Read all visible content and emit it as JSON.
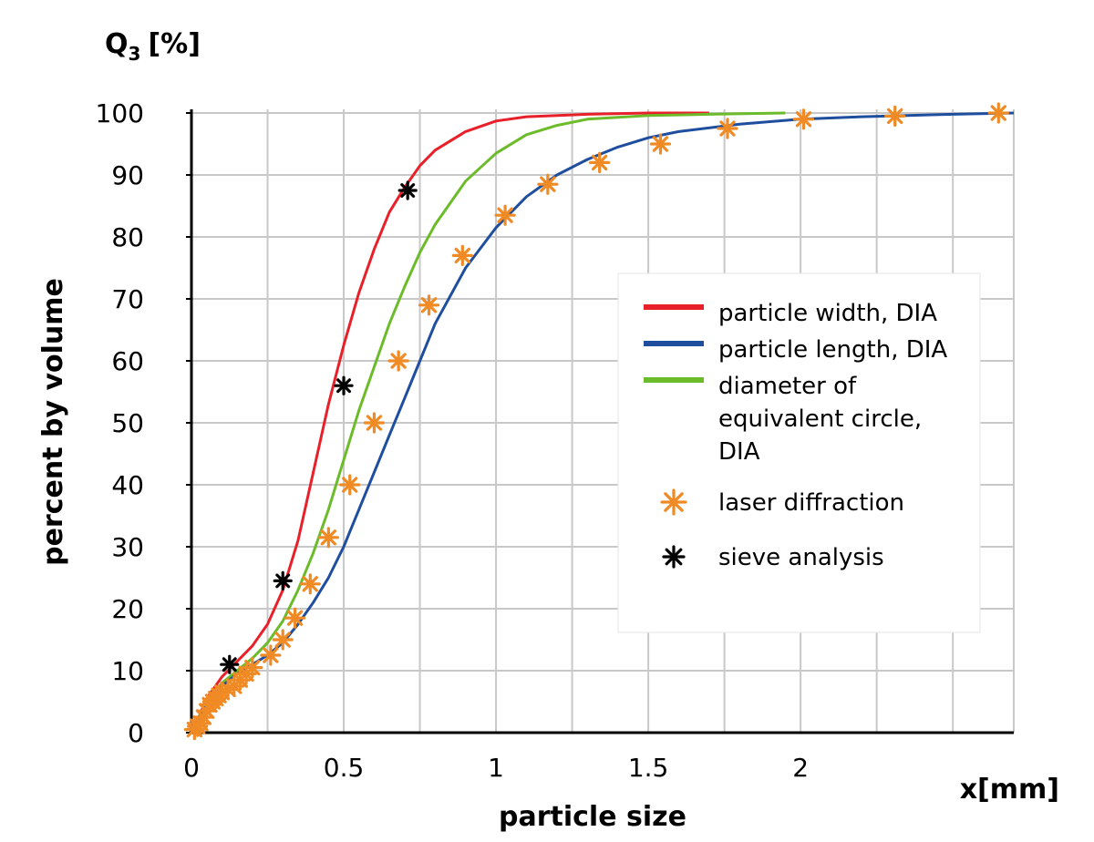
{
  "chart_data": {
    "type": "line",
    "title": "",
    "ylabel_top": "Q",
    "ylabel_top_sub": "3",
    "ylabel_top_unit": "[%]",
    "ylabel": "percent by volume",
    "xlabel": "particle size",
    "xunit_label": "x[mm]",
    "xlim": [
      0,
      2.7
    ],
    "ylim": [
      0,
      100
    ],
    "x_ticks": [
      0,
      0.5,
      1,
      1.5,
      2
    ],
    "x_tick_labels": [
      "0",
      "0.5",
      "1",
      "1.5",
      "2"
    ],
    "x_grid_step": 0.25,
    "y_ticks": [
      0,
      10,
      20,
      30,
      40,
      50,
      60,
      70,
      80,
      90,
      100
    ],
    "y_tick_labels": [
      "0",
      "10",
      "20",
      "30",
      "40",
      "50",
      "60",
      "70",
      "80",
      "90",
      "100"
    ],
    "grid": true,
    "legend_position": "right",
    "legend": [
      {
        "label_lines": [
          "particle width, DIA"
        ],
        "kind": "line",
        "color": "#e8202a"
      },
      {
        "label_lines": [
          "particle length, DIA"
        ],
        "kind": "line",
        "color": "#1f4e9e"
      },
      {
        "label_lines": [
          "diameter of",
          "equivalent circle,",
          "DIA"
        ],
        "kind": "line",
        "color": "#6cbb2a"
      },
      {
        "label_lines": [
          "laser diffraction"
        ],
        "kind": "marker",
        "color": "#f08a24"
      },
      {
        "label_lines": [
          "sieve analysis"
        ],
        "kind": "marker",
        "color": "#000000"
      }
    ],
    "series": [
      {
        "name": "particle width, DIA",
        "kind": "line",
        "color": "#e8202a",
        "points": [
          [
            0,
            0
          ],
          [
            0.02,
            2
          ],
          [
            0.05,
            5.5
          ],
          [
            0.1,
            9
          ],
          [
            0.15,
            11.5
          ],
          [
            0.2,
            14
          ],
          [
            0.25,
            17.5
          ],
          [
            0.3,
            23
          ],
          [
            0.35,
            31
          ],
          [
            0.4,
            42
          ],
          [
            0.45,
            53
          ],
          [
            0.5,
            62.5
          ],
          [
            0.55,
            71
          ],
          [
            0.6,
            78
          ],
          [
            0.65,
            84
          ],
          [
            0.7,
            88
          ],
          [
            0.75,
            91.5
          ],
          [
            0.8,
            94
          ],
          [
            0.9,
            97
          ],
          [
            1.0,
            98.7
          ],
          [
            1.1,
            99.4
          ],
          [
            1.3,
            99.8
          ],
          [
            1.5,
            100
          ],
          [
            1.7,
            100
          ]
        ]
      },
      {
        "name": "diameter of equivalent circle, DIA",
        "kind": "line",
        "color": "#6cbb2a",
        "points": [
          [
            0,
            0
          ],
          [
            0.02,
            2
          ],
          [
            0.05,
            5
          ],
          [
            0.1,
            8
          ],
          [
            0.15,
            10
          ],
          [
            0.2,
            12
          ],
          [
            0.25,
            14.5
          ],
          [
            0.3,
            18
          ],
          [
            0.35,
            23
          ],
          [
            0.4,
            29
          ],
          [
            0.45,
            36
          ],
          [
            0.5,
            44
          ],
          [
            0.55,
            52
          ],
          [
            0.6,
            59
          ],
          [
            0.65,
            66
          ],
          [
            0.7,
            72
          ],
          [
            0.75,
            77.5
          ],
          [
            0.8,
            82
          ],
          [
            0.9,
            89
          ],
          [
            1.0,
            93.5
          ],
          [
            1.1,
            96.5
          ],
          [
            1.2,
            98
          ],
          [
            1.3,
            99
          ],
          [
            1.5,
            99.6
          ],
          [
            1.7,
            99.8
          ],
          [
            1.95,
            100
          ]
        ]
      },
      {
        "name": "particle length, DIA",
        "kind": "line",
        "color": "#1f4e9e",
        "points": [
          [
            0,
            0
          ],
          [
            0.02,
            2
          ],
          [
            0.05,
            4.5
          ],
          [
            0.1,
            7.5
          ],
          [
            0.15,
            9.5
          ],
          [
            0.2,
            11
          ],
          [
            0.25,
            12.5
          ],
          [
            0.3,
            14.5
          ],
          [
            0.35,
            17.5
          ],
          [
            0.4,
            21
          ],
          [
            0.45,
            25
          ],
          [
            0.5,
            30
          ],
          [
            0.55,
            36
          ],
          [
            0.6,
            42
          ],
          [
            0.65,
            48
          ],
          [
            0.7,
            54
          ],
          [
            0.75,
            60
          ],
          [
            0.8,
            66
          ],
          [
            0.9,
            75
          ],
          [
            1.0,
            81.5
          ],
          [
            1.1,
            86.5
          ],
          [
            1.2,
            90
          ],
          [
            1.3,
            92.5
          ],
          [
            1.4,
            94.5
          ],
          [
            1.5,
            96
          ],
          [
            1.6,
            97
          ],
          [
            1.8,
            98.2
          ],
          [
            2.0,
            99
          ],
          [
            2.2,
            99.4
          ],
          [
            2.5,
            99.8
          ],
          [
            2.7,
            100
          ]
        ]
      },
      {
        "name": "laser diffraction",
        "kind": "marker",
        "color": "#f08a24",
        "points": [
          [
            0.01,
            0.5
          ],
          [
            0.02,
            1
          ],
          [
            0.03,
            1.5
          ],
          [
            0.04,
            2.5
          ],
          [
            0.05,
            3.5
          ],
          [
            0.06,
            4.5
          ],
          [
            0.07,
            5
          ],
          [
            0.08,
            5.5
          ],
          [
            0.09,
            6
          ],
          [
            0.1,
            6.5
          ],
          [
            0.12,
            7
          ],
          [
            0.14,
            7.5
          ],
          [
            0.16,
            8.5
          ],
          [
            0.18,
            9.5
          ],
          [
            0.2,
            10.5
          ],
          [
            0.26,
            12.5
          ],
          [
            0.3,
            15
          ],
          [
            0.34,
            18.5
          ],
          [
            0.39,
            24
          ],
          [
            0.45,
            31.5
          ],
          [
            0.52,
            40
          ],
          [
            0.6,
            50
          ],
          [
            0.68,
            60
          ],
          [
            0.78,
            69
          ],
          [
            0.89,
            77
          ],
          [
            1.03,
            83.5
          ],
          [
            1.17,
            88.5
          ],
          [
            1.34,
            92
          ],
          [
            1.54,
            95
          ],
          [
            1.76,
            97.5
          ],
          [
            2.01,
            99
          ],
          [
            2.31,
            99.5
          ],
          [
            2.65,
            100
          ]
        ]
      },
      {
        "name": "sieve analysis",
        "kind": "marker",
        "color": "#000000",
        "points": [
          [
            0.125,
            11
          ],
          [
            0.3,
            24.5
          ],
          [
            0.5,
            56
          ],
          [
            0.71,
            87.5
          ]
        ]
      }
    ]
  }
}
